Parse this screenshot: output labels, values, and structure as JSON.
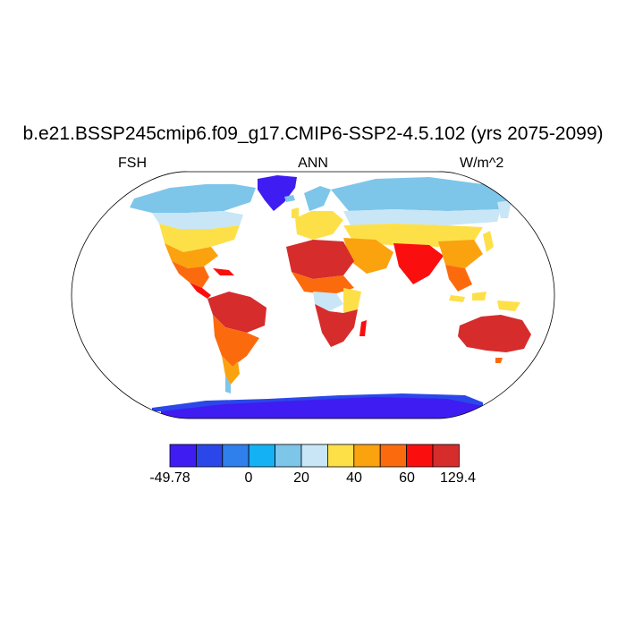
{
  "title": "b.e21.BSSP245cmip6.f09_g17.CMIP6-SSP2-4.5.102 (yrs 2075-2099)",
  "variable": "FSH",
  "season": "ANN",
  "units": "W/m^2",
  "projection": "Robinson",
  "colorbar": {
    "colors": [
      "#3f1cf2",
      "#2b47ea",
      "#2f7fec",
      "#14b2f5",
      "#7ec5ea",
      "#c8e6f6",
      "#fde048",
      "#fba20f",
      "#fb6b0e",
      "#fb0e0e",
      "#d62c2c"
    ],
    "labels": [
      "-49.78",
      "0",
      "20",
      "40",
      "60",
      "129.4"
    ],
    "min": -49.78,
    "max": 129.4
  }
}
